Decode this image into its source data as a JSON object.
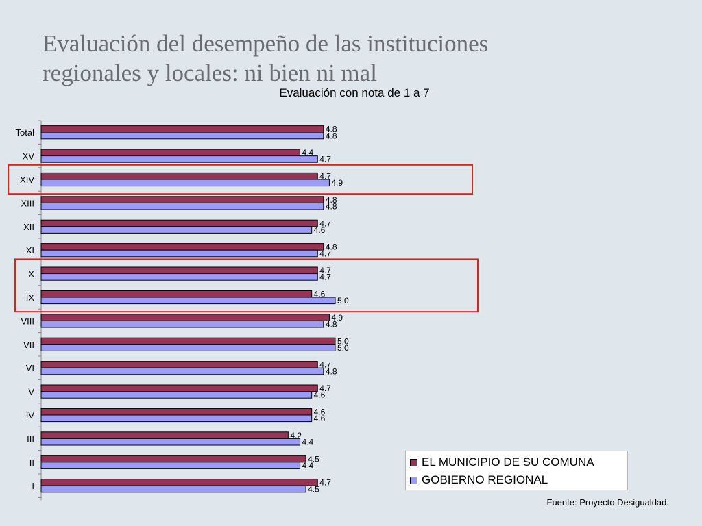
{
  "slide": {
    "title_line1": "Evaluación del desempeño de las instituciones",
    "title_line2": "regionales y locales: ni bien ni mal",
    "source": "Fuente: Proyecto Desigualdad."
  },
  "chart_data": {
    "type": "bar",
    "orientation": "horizontal",
    "title": "Evaluación con nota de 1 a 7",
    "categories": [
      "Total",
      "XV",
      "XIV",
      "XIII",
      "XII",
      "XI",
      "X",
      "IX",
      "VIII",
      "VII",
      "VI",
      "V",
      "IV",
      "III",
      "II",
      "I"
    ],
    "series": [
      {
        "name": "EL MUNICIPIO DE SU COMUNA",
        "color": "#953455",
        "values": [
          4.8,
          4.4,
          4.7,
          4.8,
          4.7,
          4.8,
          4.7,
          4.6,
          4.9,
          5.0,
          4.7,
          4.7,
          4.6,
          4.2,
          4.5,
          4.7
        ]
      },
      {
        "name": "GOBIERNO REGIONAL",
        "color": "#9b9bf9",
        "values": [
          4.8,
          4.7,
          4.9,
          4.8,
          4.6,
          4.7,
          4.7,
          5.0,
          4.8,
          5.0,
          4.8,
          4.6,
          4.6,
          4.4,
          4.4,
          4.5
        ]
      }
    ],
    "data_labels": true,
    "legend_position": "bottom-right",
    "highlighted_categories": [
      [
        "XIV"
      ],
      [
        "X",
        "IX"
      ]
    ],
    "highlight_color": "#e0201b"
  }
}
